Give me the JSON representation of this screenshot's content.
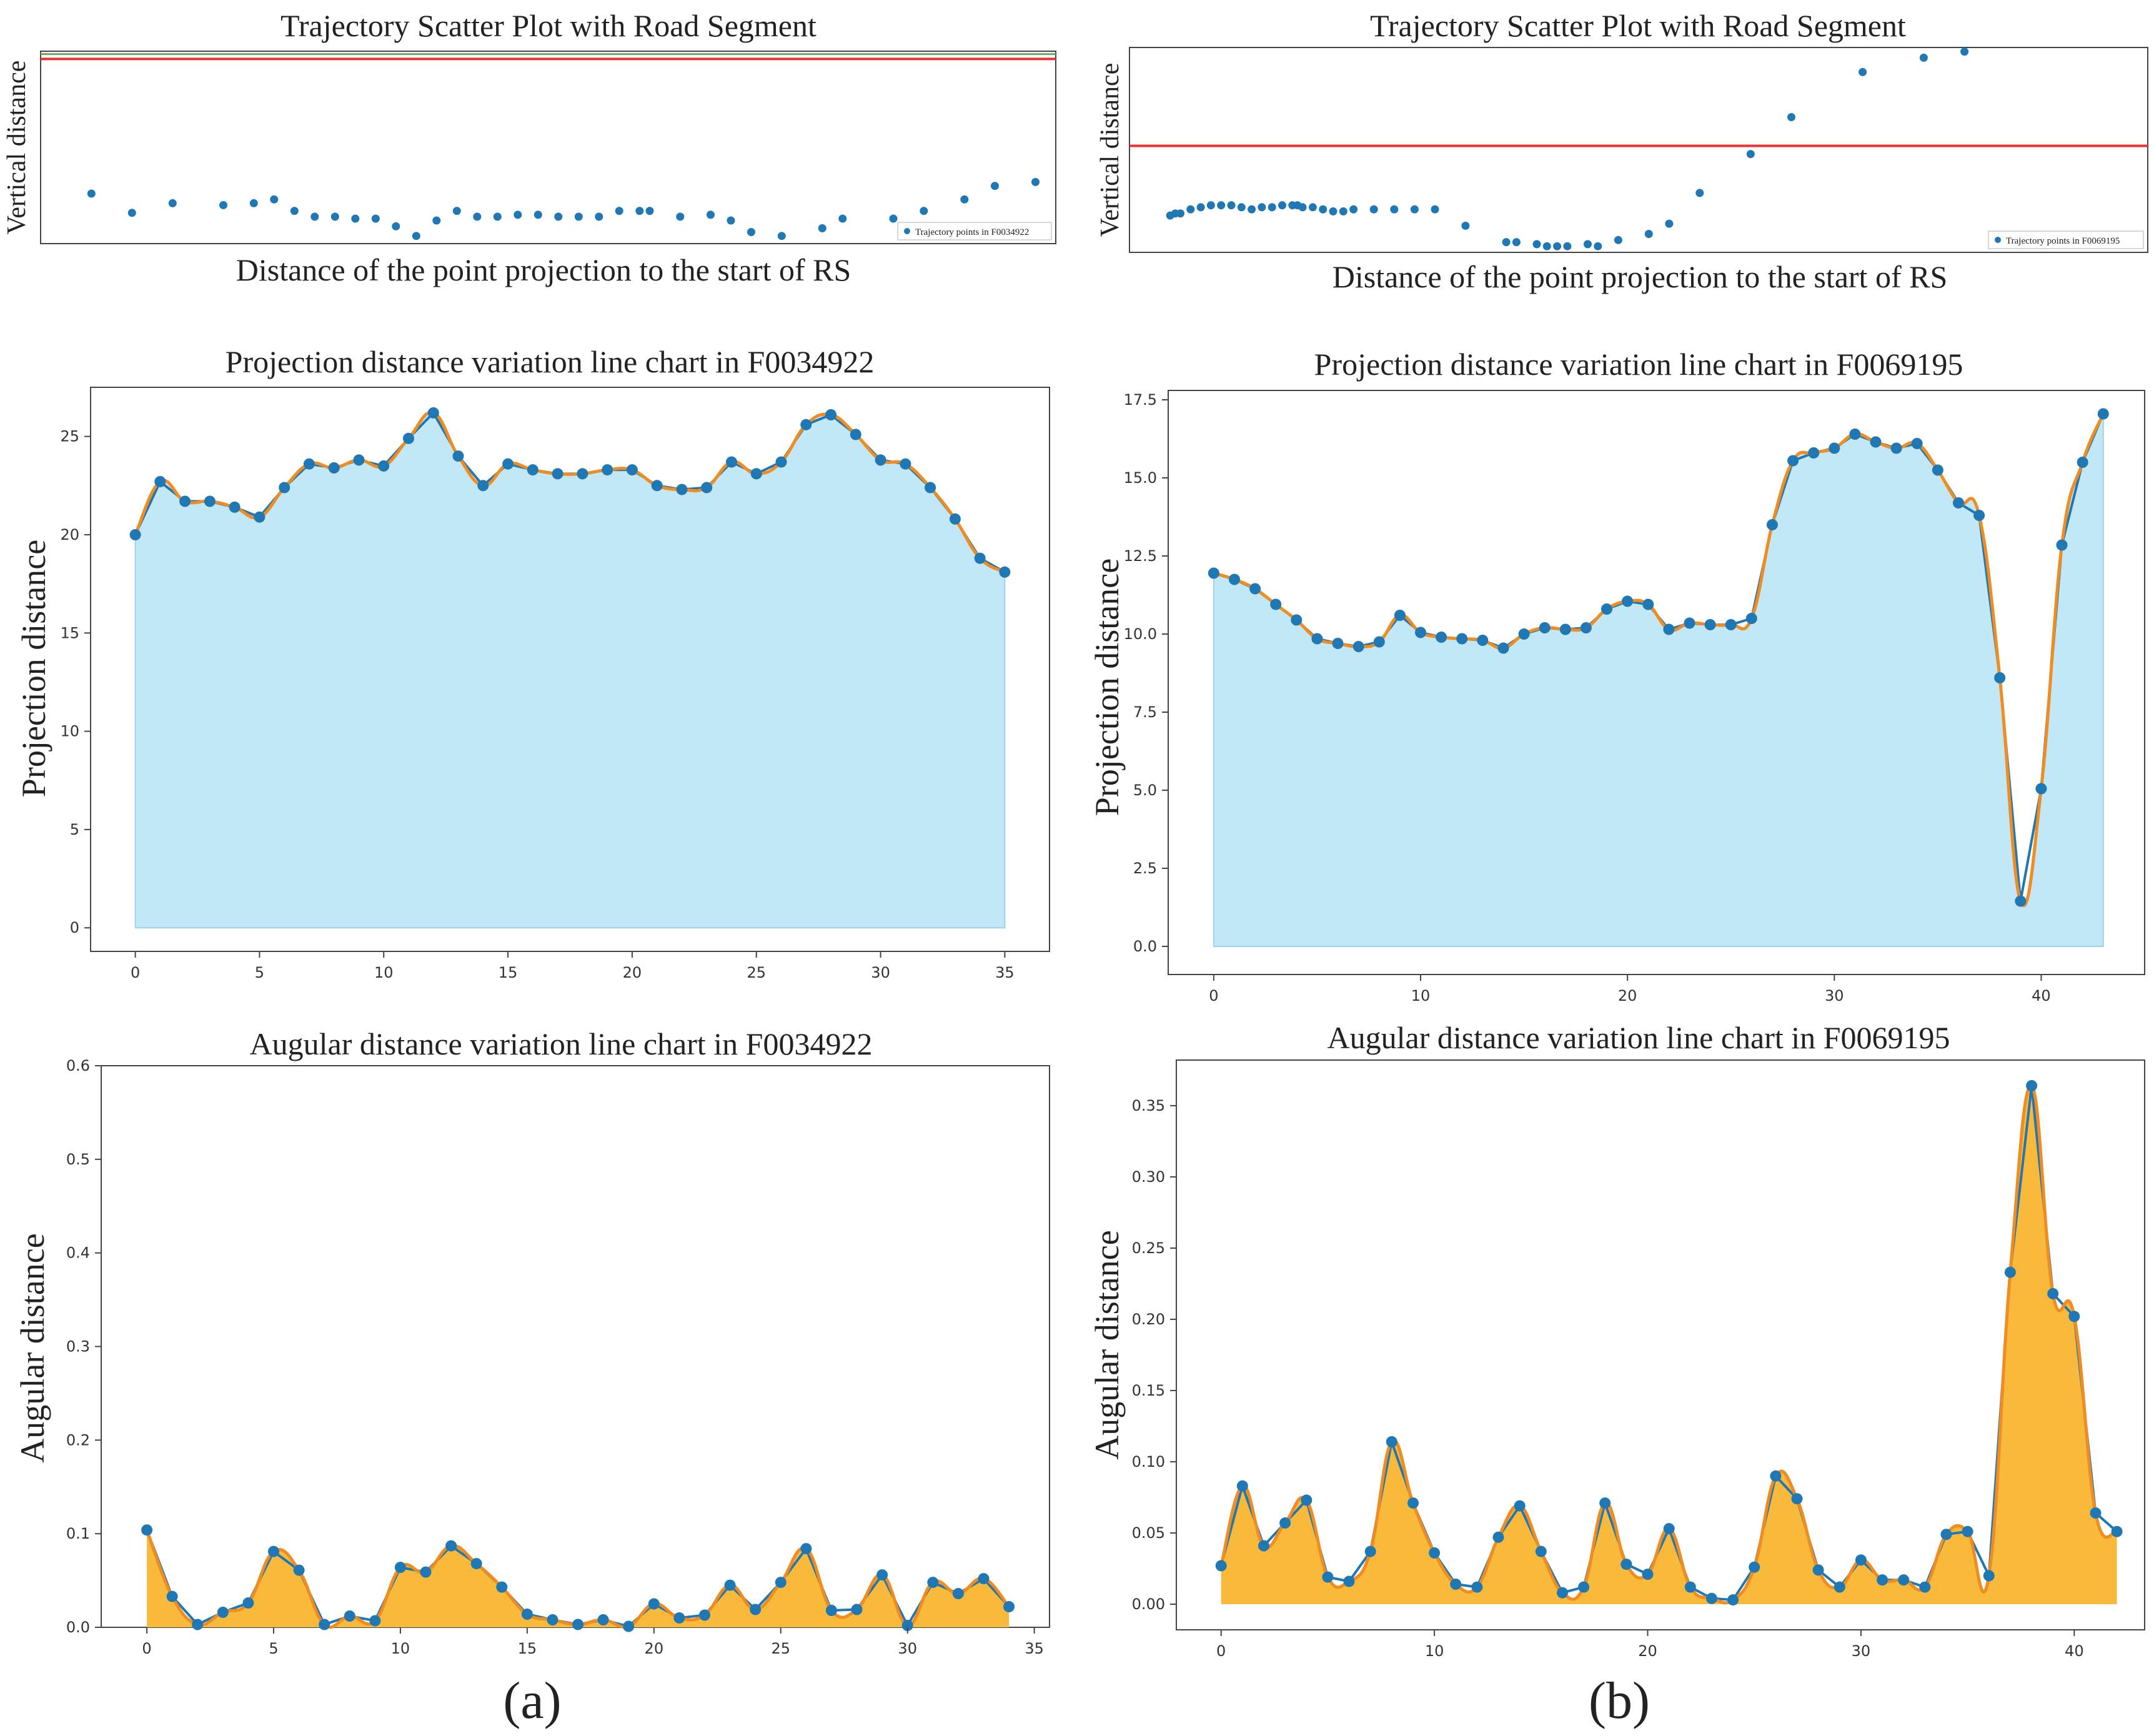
{
  "panel_labels": [
    "(a)",
    "(b)"
  ],
  "colors": {
    "point": "#1f77b4",
    "road_line": "#e8332f",
    "top_line": "#6aa86a",
    "fill_blue": "#c2e7f7",
    "fill_orange": "#f9b93b",
    "smooth_orange": "#f08c20",
    "frame": "#444444"
  },
  "chart_data": [
    {
      "id": "scatter_a",
      "type": "scatter",
      "title": "Trajectory Scatter Plot with Road Segment",
      "xlabel": "Distance of the point projection to the start of RS",
      "ylabel": "Vertical distance",
      "legend": "Trajectory points in F0034922",
      "legend_position": "bottom-right",
      "xlim": [
        0,
        100
      ],
      "ylim": [
        0,
        100
      ],
      "road_y": 96,
      "top_line_y": 98.5,
      "points": [
        [
          5,
          26
        ],
        [
          9,
          16
        ],
        [
          13,
          21
        ],
        [
          18,
          20
        ],
        [
          21,
          21
        ],
        [
          23,
          23
        ],
        [
          25,
          17
        ],
        [
          27,
          14
        ],
        [
          29,
          14
        ],
        [
          31,
          13
        ],
        [
          33,
          13
        ],
        [
          35,
          9
        ],
        [
          37,
          4
        ],
        [
          39,
          12
        ],
        [
          41,
          17
        ],
        [
          43,
          14
        ],
        [
          45,
          14
        ],
        [
          47,
          15
        ],
        [
          49,
          15
        ],
        [
          51,
          14
        ],
        [
          53,
          14
        ],
        [
          55,
          14
        ],
        [
          57,
          17
        ],
        [
          59,
          17
        ],
        [
          60,
          17
        ],
        [
          63,
          14
        ],
        [
          66,
          15
        ],
        [
          68,
          12
        ],
        [
          70,
          6
        ],
        [
          73,
          4
        ],
        [
          77,
          8
        ],
        [
          79,
          13
        ],
        [
          84,
          13
        ],
        [
          87,
          17
        ],
        [
          91,
          23
        ],
        [
          94,
          30
        ],
        [
          98,
          32
        ]
      ]
    },
    {
      "id": "scatter_b",
      "type": "scatter",
      "title": "Trajectory Scatter Plot with Road Segment",
      "xlabel": "Distance of the point projection to the start of RS",
      "ylabel": "Vertical distance",
      "legend": "Trajectory points in F0069195",
      "legend_position": "bottom-right",
      "xlim": [
        0,
        100
      ],
      "ylim": [
        0,
        100
      ],
      "road_y": 52,
      "points": [
        [
          4,
          18
        ],
        [
          4.5,
          19
        ],
        [
          5,
          19
        ],
        [
          6,
          21
        ],
        [
          7,
          22
        ],
        [
          8,
          23
        ],
        [
          9,
          23
        ],
        [
          10,
          23
        ],
        [
          11,
          22
        ],
        [
          12,
          21
        ],
        [
          13,
          22
        ],
        [
          14,
          22
        ],
        [
          15,
          23
        ],
        [
          16,
          23
        ],
        [
          16.5,
          23
        ],
        [
          17,
          22
        ],
        [
          18,
          22
        ],
        [
          19,
          21
        ],
        [
          20,
          20
        ],
        [
          21,
          20
        ],
        [
          22,
          21
        ],
        [
          24,
          21
        ],
        [
          26,
          21
        ],
        [
          28,
          21
        ],
        [
          30,
          21
        ],
        [
          33,
          13
        ],
        [
          37,
          5
        ],
        [
          38,
          5
        ],
        [
          40,
          4
        ],
        [
          41,
          3
        ],
        [
          42,
          3
        ],
        [
          43,
          3
        ],
        [
          45,
          4
        ],
        [
          46,
          3
        ],
        [
          48,
          6
        ],
        [
          51,
          9
        ],
        [
          53,
          14
        ],
        [
          56,
          29
        ],
        [
          61,
          48
        ],
        [
          65,
          66
        ],
        [
          72,
          88
        ],
        [
          78,
          95
        ],
        [
          82,
          98
        ]
      ]
    },
    {
      "id": "proj_a",
      "type": "area",
      "title": "Projection distance variation line chart in F0034922",
      "xlabel": "",
      "ylabel": "Projection distance",
      "xlim": [
        -1.8,
        36.8
      ],
      "ylim": [
        -1.2,
        27.5
      ],
      "xticks": [
        0,
        5,
        10,
        15,
        20,
        25,
        30,
        35
      ],
      "yticks": [
        0,
        5,
        10,
        15,
        20,
        25
      ],
      "ytick_labels": [
        "0",
        "5",
        "10",
        "15",
        "20",
        "25"
      ],
      "fill": "blue",
      "x": [
        0,
        1,
        2,
        3,
        4,
        5,
        6,
        7,
        8,
        9,
        10,
        11,
        12,
        13,
        14,
        15,
        16,
        17,
        18,
        19,
        20,
        21,
        22,
        23,
        24,
        25,
        26,
        27,
        28,
        29,
        30,
        31,
        32,
        33,
        34,
        35
      ],
      "values": [
        20.0,
        22.7,
        21.7,
        21.7,
        21.4,
        20.9,
        22.4,
        23.6,
        23.4,
        23.8,
        23.5,
        24.9,
        26.2,
        24.0,
        22.5,
        23.6,
        23.3,
        23.1,
        23.1,
        23.3,
        23.3,
        22.5,
        22.3,
        22.4,
        23.7,
        23.1,
        23.7,
        25.6,
        26.1,
        25.1,
        23.8,
        23.6,
        22.4,
        20.8,
        18.8,
        18.1
      ]
    },
    {
      "id": "proj_b",
      "type": "area",
      "title": "Projection distance variation line chart in F0069195",
      "xlabel": "",
      "ylabel": "Projection distance",
      "xlim": [
        -2.2,
        45.0
      ],
      "ylim": [
        -0.9,
        17.8
      ],
      "xticks": [
        0,
        10,
        20,
        30,
        40
      ],
      "yticks": [
        0,
        2.5,
        5,
        7.5,
        10,
        12.5,
        15,
        17.5
      ],
      "ytick_labels": [
        "0.0",
        "2.5",
        "5.0",
        "7.5",
        "10.0",
        "12.5",
        "15.0",
        "17.5"
      ],
      "fill": "blue",
      "x": [
        0,
        1,
        2,
        3,
        4,
        5,
        6,
        7,
        8,
        9,
        10,
        11,
        12,
        13,
        14,
        15,
        16,
        17,
        18,
        19,
        20,
        21,
        22,
        23,
        24,
        25,
        26,
        27,
        28,
        29,
        30,
        31,
        32,
        33,
        34,
        35,
        36,
        37,
        38,
        39,
        40,
        41,
        42,
        43
      ],
      "values": [
        11.95,
        11.75,
        11.45,
        10.95,
        10.45,
        9.85,
        9.7,
        9.6,
        9.75,
        10.6,
        10.05,
        9.9,
        9.85,
        9.8,
        9.55,
        10.0,
        10.2,
        10.15,
        10.2,
        10.8,
        11.05,
        10.95,
        10.15,
        10.35,
        10.3,
        10.3,
        10.5,
        13.5,
        15.55,
        15.8,
        15.95,
        16.4,
        16.15,
        15.95,
        16.1,
        15.25,
        14.2,
        13.8,
        8.6,
        1.45,
        5.05,
        12.85,
        15.5,
        17.05
      ]
    },
    {
      "id": "ang_a",
      "type": "area",
      "title": "Augular distance variation line chart in F0034922",
      "xlabel": "",
      "ylabel": "Augular distance",
      "xlim": [
        -1.8,
        35.6
      ],
      "ylim": [
        0,
        0.6
      ],
      "xticks": [
        0,
        5,
        10,
        15,
        20,
        25,
        30,
        35
      ],
      "yticks": [
        0,
        0.1,
        0.2,
        0.3,
        0.4,
        0.5,
        0.6
      ],
      "ytick_labels": [
        "0.0",
        "0.1",
        "0.2",
        "0.3",
        "0.4",
        "0.5",
        "0.6"
      ],
      "fill": "orange",
      "x": [
        0,
        1,
        2,
        3,
        4,
        5,
        6,
        7,
        8,
        9,
        10,
        11,
        12,
        13,
        14,
        15,
        16,
        17,
        18,
        19,
        20,
        21,
        22,
        23,
        24,
        25,
        26,
        27,
        28,
        29,
        30,
        31,
        32,
        33,
        34
      ],
      "values": [
        0.104,
        0.033,
        0.003,
        0.016,
        0.026,
        0.081,
        0.061,
        0.003,
        0.012,
        0.007,
        0.064,
        0.059,
        0.087,
        0.068,
        0.043,
        0.014,
        0.008,
        0.003,
        0.008,
        0.001,
        0.025,
        0.01,
        0.013,
        0.045,
        0.019,
        0.048,
        0.084,
        0.018,
        0.019,
        0.056,
        0.002,
        0.048,
        0.036,
        0.052,
        0.022
      ]
    },
    {
      "id": "ang_b",
      "type": "area",
      "title": "Augular distance variation line chart in F0069195",
      "xlabel": "",
      "ylabel": "Augular distance",
      "xlim": [
        -2.1,
        43.3
      ],
      "ylim": [
        -0.018,
        0.382
      ],
      "xticks": [
        0,
        10,
        20,
        30,
        40
      ],
      "yticks": [
        0,
        0.05,
        0.1,
        0.15,
        0.2,
        0.25,
        0.3,
        0.35
      ],
      "ytick_labels": [
        "0.00",
        "0.05",
        "0.10",
        "0.15",
        "0.20",
        "0.25",
        "0.30",
        "0.35"
      ],
      "fill": "orange",
      "x": [
        0,
        1,
        2,
        3,
        4,
        5,
        6,
        7,
        8,
        9,
        10,
        11,
        12,
        13,
        14,
        15,
        16,
        17,
        18,
        19,
        20,
        21,
        22,
        23,
        24,
        25,
        26,
        27,
        28,
        29,
        30,
        31,
        32,
        33,
        34,
        35,
        36,
        37,
        38,
        39,
        40,
        41,
        42
      ],
      "values": [
        0.027,
        0.083,
        0.041,
        0.057,
        0.073,
        0.019,
        0.016,
        0.037,
        0.114,
        0.071,
        0.036,
        0.014,
        0.012,
        0.047,
        0.069,
        0.037,
        0.008,
        0.012,
        0.071,
        0.028,
        0.021,
        0.053,
        0.012,
        0.004,
        0.003,
        0.026,
        0.09,
        0.074,
        0.024,
        0.012,
        0.031,
        0.017,
        0.017,
        0.012,
        0.049,
        0.051,
        0.02,
        0.233,
        0.364,
        0.218,
        0.202,
        0.064,
        0.051
      ]
    }
  ]
}
